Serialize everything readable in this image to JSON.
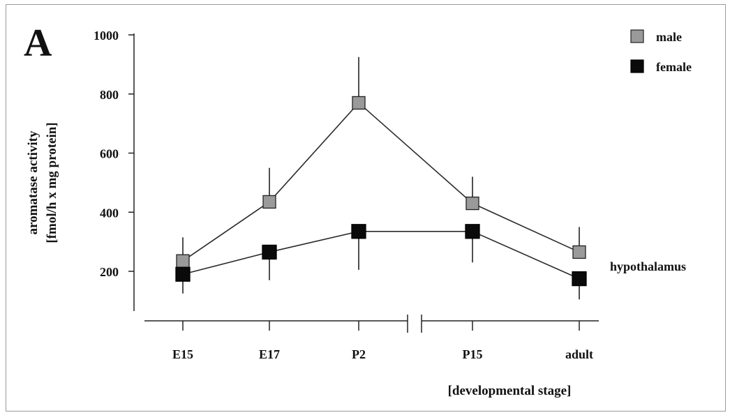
{
  "panel_label": "A",
  "region_label": "hypothalamus",
  "colors": {
    "male": "#9a9a9a",
    "female": "#0a0a0a",
    "line": "#2a2a2a"
  },
  "chart_data": {
    "type": "line",
    "categories": [
      "E15",
      "E17",
      "P2",
      "P15",
      "adult"
    ],
    "series": [
      {
        "name": "male",
        "values": [
          235,
          435,
          770,
          430,
          265
        ],
        "error": [
          80,
          115,
          155,
          90,
          85
        ]
      },
      {
        "name": "female",
        "values": [
          190,
          265,
          335,
          335,
          175
        ],
        "error": [
          65,
          95,
          130,
          105,
          70
        ]
      }
    ],
    "ylabel_line1": "aromatase activity",
    "ylabel_line2": "[fmol/h x mg protein]",
    "xlabel": "[developmental stage]",
    "yticks": [
      200,
      400,
      600,
      800,
      1000
    ],
    "ylim": [
      100,
      1000
    ],
    "legend_position": "top-right",
    "x_axis_break": "between P2 and P15"
  }
}
